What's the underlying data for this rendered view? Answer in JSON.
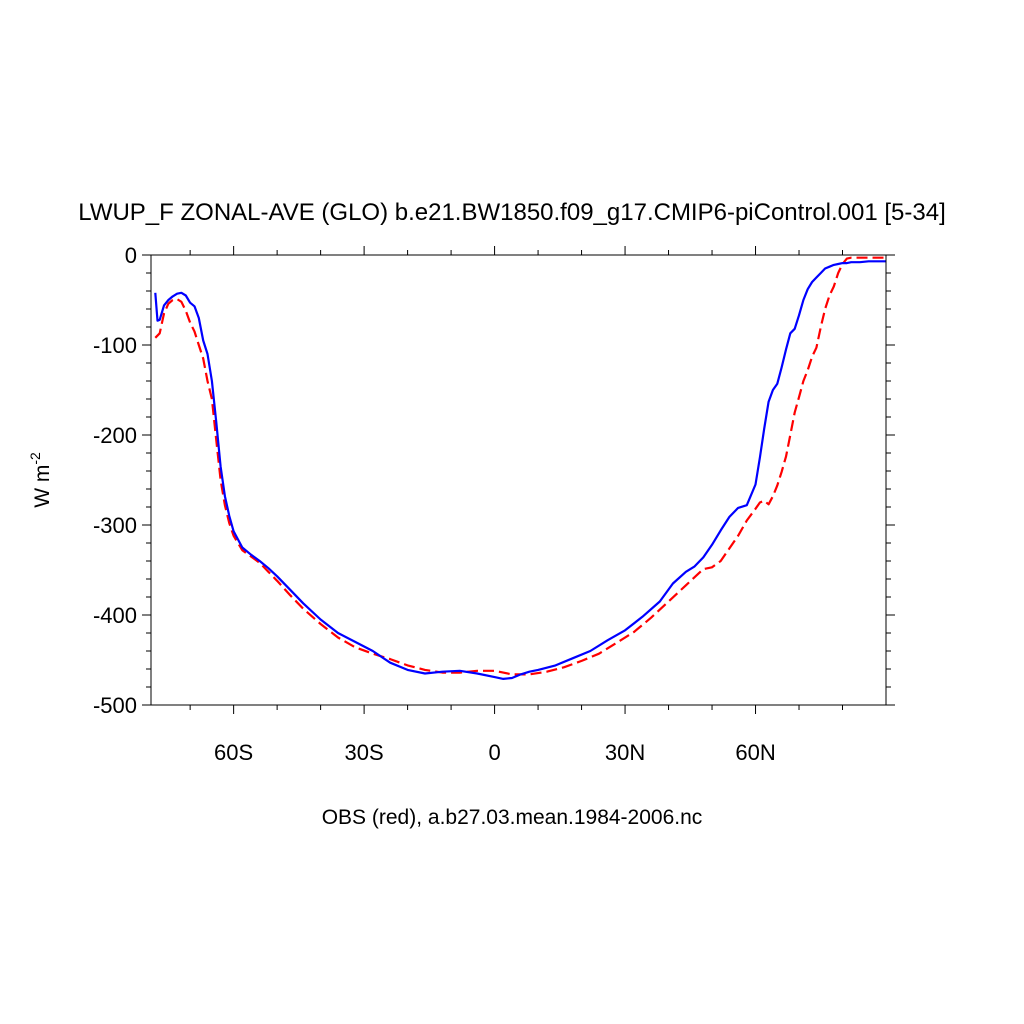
{
  "chart_data": {
    "type": "line",
    "title": "LWUP_F ZONAL-AVE (GLO) b.e21.BW1850.f09_g17.CMIP6-piControl.001 [5-34]",
    "xlabel": "OBS (red), a.b27.03.mean.1984-2006.nc",
    "ylabel": "W m",
    "ylabel_superscript": "-2",
    "xlim": [
      -79,
      90
    ],
    "ylim": [
      -500,
      0
    ],
    "x_ticks": [
      {
        "value": -60,
        "label": "60S"
      },
      {
        "value": -30,
        "label": "30S"
      },
      {
        "value": 0,
        "label": "0"
      },
      {
        "value": 30,
        "label": "30N"
      },
      {
        "value": 60,
        "label": "60N"
      }
    ],
    "y_ticks": [
      {
        "value": 0,
        "label": "0"
      },
      {
        "value": -100,
        "label": "-100"
      },
      {
        "value": -200,
        "label": "-200"
      },
      {
        "value": -300,
        "label": "-300"
      },
      {
        "value": -400,
        "label": "-400"
      },
      {
        "value": -500,
        "label": "-500"
      }
    ],
    "series": [
      {
        "name": "b.e21.BW1850.f09_g17.CMIP6-piControl.001",
        "color": "#0000ff",
        "dash": "solid",
        "x": [
          -78,
          -77.5,
          -77,
          -76,
          -75,
          -74,
          -73,
          -72,
          -71,
          -70,
          -69,
          -68,
          -67,
          -66,
          -65,
          -64,
          -63,
          -62,
          -61,
          -60,
          -58,
          -56,
          -54,
          -52,
          -50,
          -47,
          -44,
          -40,
          -36,
          -32,
          -28,
          -24,
          -20,
          -16,
          -12,
          -8,
          -4,
          0,
          2,
          4,
          6,
          8,
          10,
          14,
          18,
          22,
          26,
          30,
          34,
          38,
          41,
          44,
          46,
          48,
          50,
          52,
          54,
          56,
          58,
          60,
          61,
          62,
          63,
          64,
          65,
          66,
          67,
          68,
          69,
          70,
          71,
          72,
          73,
          74,
          75,
          76,
          77,
          78,
          79,
          80,
          81,
          82,
          83,
          84,
          86,
          88,
          90
        ],
        "values": [
          -42,
          -73,
          -72,
          -56,
          -50,
          -46,
          -43,
          -42,
          -45,
          -53,
          -57,
          -70,
          -95,
          -110,
          -140,
          -185,
          -235,
          -268,
          -290,
          -307,
          -325,
          -333,
          -340,
          -348,
          -357,
          -372,
          -387,
          -405,
          -420,
          -430,
          -440,
          -453,
          -461,
          -465,
          -463,
          -462,
          -465,
          -469,
          -471,
          -470,
          -466,
          -463,
          -461,
          -456,
          -448,
          -440,
          -428,
          -417,
          -402,
          -385,
          -365,
          -352,
          -346,
          -336,
          -322,
          -306,
          -291,
          -281,
          -278,
          -255,
          -225,
          -193,
          -163,
          -150,
          -143,
          -125,
          -105,
          -87,
          -82,
          -67,
          -50,
          -38,
          -30,
          -25,
          -20,
          -15,
          -13,
          -11,
          -10,
          -9,
          -9,
          -8,
          -8,
          -8,
          -7,
          -7,
          -7
        ]
      },
      {
        "name": "OBS",
        "color": "#ff0000",
        "dash": "dashed",
        "x": [
          -78,
          -77,
          -76,
          -75,
          -74,
          -73,
          -72,
          -71,
          -70,
          -69,
          -68,
          -67,
          -66,
          -65,
          -64,
          -63,
          -62,
          -61,
          -60,
          -58,
          -56,
          -54,
          -52,
          -50,
          -47,
          -44,
          -40,
          -36,
          -32,
          -28,
          -24,
          -20,
          -16,
          -12,
          -8,
          -4,
          0,
          4,
          8,
          12,
          16,
          20,
          24,
          28,
          32,
          36,
          40,
          44,
          46,
          48,
          50,
          52,
          54,
          56,
          58,
          60,
          61,
          62,
          63,
          64,
          65,
          66,
          67,
          68,
          69,
          70,
          71,
          72,
          73,
          74,
          75,
          76,
          77,
          78,
          79,
          80,
          81,
          82,
          83,
          84,
          86,
          88,
          90
        ],
        "values": [
          -92,
          -87,
          -65,
          -54,
          -50,
          -49,
          -52,
          -62,
          -75,
          -85,
          -100,
          -115,
          -140,
          -160,
          -205,
          -250,
          -278,
          -298,
          -312,
          -328,
          -335,
          -342,
          -352,
          -362,
          -378,
          -393,
          -410,
          -425,
          -436,
          -443,
          -449,
          -456,
          -461,
          -464,
          -464,
          -462,
          -462,
          -466,
          -466,
          -463,
          -458,
          -451,
          -443,
          -431,
          -419,
          -403,
          -385,
          -367,
          -358,
          -349,
          -347,
          -340,
          -326,
          -312,
          -295,
          -282,
          -275,
          -273,
          -277,
          -268,
          -256,
          -241,
          -224,
          -200,
          -175,
          -158,
          -140,
          -128,
          -113,
          -103,
          -80,
          -60,
          -45,
          -35,
          -20,
          -10,
          -4,
          -3,
          -3,
          -3,
          -3,
          -3,
          -3
        ]
      }
    ]
  }
}
